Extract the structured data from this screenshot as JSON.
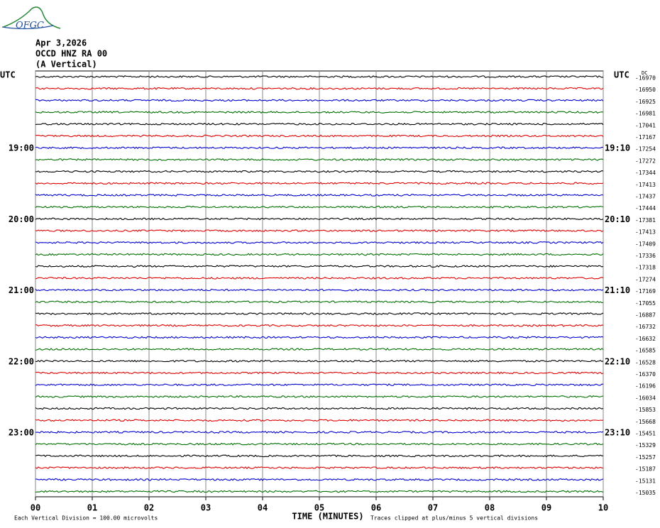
{
  "chart_data": {
    "type": "helicorder",
    "logo": "OFGC",
    "title": "Apr 3,2026",
    "station": "OCCD HNZ RA 00",
    "component": "(A Vertical)",
    "time_zone_label": "UTC",
    "xlabel": "TIME (MINUTES)",
    "xlim": [
      0,
      10
    ],
    "xticks": [
      {
        "value": 0,
        "label": "00"
      },
      {
        "value": 1,
        "label": "01"
      },
      {
        "value": 2,
        "label": "02"
      },
      {
        "value": 3,
        "label": "03"
      },
      {
        "value": 4,
        "label": "04"
      },
      {
        "value": 5,
        "label": "05"
      },
      {
        "value": 6,
        "label": "06"
      },
      {
        "value": 7,
        "label": "07"
      },
      {
        "value": 8,
        "label": "08"
      },
      {
        "value": 9,
        "label": "09"
      },
      10
    ],
    "grid": true,
    "colors": [
      "#000000",
      "#e00000",
      "#0000d0",
      "#007000"
    ],
    "left_labels": [
      null,
      null,
      null,
      null,
      null,
      null,
      "19:00",
      null,
      null,
      null,
      null,
      null,
      "20:00",
      null,
      null,
      null,
      null,
      null,
      "21:00",
      null,
      null,
      null,
      null,
      null,
      "22:00",
      null,
      null,
      null,
      null,
      null,
      "23:00",
      null,
      null,
      null,
      null,
      null
    ],
    "right_labels": [
      null,
      null,
      null,
      null,
      null,
      null,
      "19:10",
      null,
      null,
      null,
      null,
      null,
      "20:10",
      null,
      null,
      null,
      null,
      null,
      "21:10",
      null,
      null,
      null,
      null,
      null,
      "22:10",
      null,
      null,
      null,
      null,
      null,
      "23:10",
      null,
      null,
      null,
      null,
      null
    ],
    "offset_header": "DC",
    "offsets": [
      -16970,
      -16950,
      -16925,
      -16981,
      -17041,
      -17167,
      -17254,
      -17272,
      -17344,
      -17413,
      -17437,
      -17444,
      -17381,
      -17413,
      -17409,
      -17336,
      -17318,
      -17274,
      -17169,
      -17055,
      -16887,
      -16732,
      -16632,
      -16585,
      -16528,
      -16370,
      -16196,
      -16034,
      -15853,
      -15668,
      -15451,
      -15329,
      -15257,
      -15187,
      -15131,
      -15035
    ],
    "footnote_left": "Each Vertical Division =  100.00 microvolts",
    "footnote_right": "Traces clipped at plus/minus 5 vertical divisions"
  }
}
